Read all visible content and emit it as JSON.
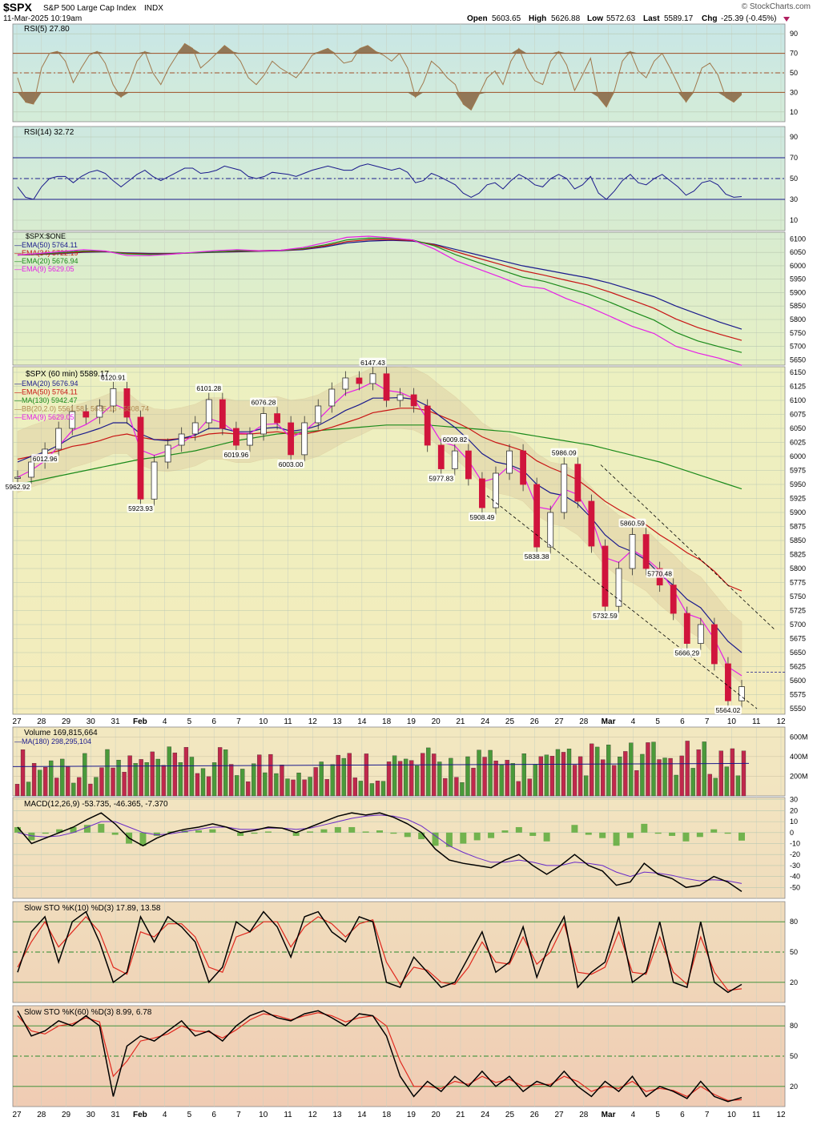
{
  "header": {
    "symbol": "$SPX",
    "name": "S&P 500 Large Cap Index",
    "exchange": "INDX",
    "date": "11-Mar-2025 10:19am",
    "watermark": "© StockCharts.com",
    "open_label": "Open",
    "open": "5603.65",
    "high_label": "High",
    "high": "5626.88",
    "low_label": "Low",
    "low": "5572.63",
    "last_label": "Last",
    "last": "5589.17",
    "chg_label": "Chg",
    "chg": "-25.39 (-0.45%)",
    "chg_arrow": "down-triangle-icon"
  },
  "colors": {
    "rsi_line": "#a0784c",
    "rsi_fill": "#8b6a48",
    "rsi14_line": "#1a1a8c",
    "ema50": "#1a1a8c",
    "ema34": "#c81414",
    "ema20": "#1a8a1a",
    "ema9": "#e61ee6",
    "up": "#2f8c2f",
    "down": "#d0143c",
    "volume_up": "#4a9a3a",
    "volume_down": "#c0284c",
    "macd": "#000000",
    "signal": "#6a2ac8",
    "hist": "#5caa3a",
    "sto_k": "#000000",
    "sto_d": "#e0281e"
  },
  "x_axis": {
    "labels": [
      "27",
      "28",
      "29",
      "30",
      "31",
      "Feb",
      "4",
      "5",
      "6",
      "7",
      "10",
      "11",
      "12",
      "13",
      "14",
      "18",
      "19",
      "20",
      "21",
      "24",
      "25",
      "26",
      "27",
      "28",
      "Mar",
      "4",
      "5",
      "6",
      "7",
      "10",
      "11",
      "12"
    ],
    "bold": [
      "Feb",
      "Mar"
    ]
  },
  "chart_data": [
    {
      "type": "line",
      "title": "RSI(5) 27.80",
      "yticks": [
        10,
        30,
        50,
        70,
        90
      ],
      "ylim": [
        0,
        100
      ],
      "levels": [
        30,
        50,
        70
      ],
      "values": [
        45,
        20,
        18,
        55,
        70,
        72,
        62,
        40,
        55,
        68,
        72,
        60,
        38,
        25,
        40,
        62,
        72,
        50,
        38,
        55,
        68,
        80,
        75,
        55,
        62,
        70,
        78,
        72,
        62,
        45,
        38,
        48,
        62,
        55,
        50,
        45,
        55,
        68,
        72,
        75,
        68,
        60,
        62,
        75,
        78,
        72,
        68,
        62,
        70,
        55,
        25,
        40,
        62,
        55,
        45,
        38,
        18,
        12,
        28,
        45,
        52,
        38,
        62,
        75,
        55,
        42,
        38,
        62,
        72,
        58,
        32,
        48,
        65,
        25,
        15,
        32,
        62,
        72,
        52,
        45,
        62,
        70,
        55,
        38,
        20,
        32,
        55,
        60,
        48,
        25,
        20,
        27.8
      ]
    },
    {
      "type": "line",
      "title": "RSI(14) 32.72",
      "yticks": [
        10,
        30,
        50,
        70,
        90
      ],
      "ylim": [
        0,
        100
      ],
      "levels": [
        30,
        50,
        70
      ],
      "values": [
        42,
        32,
        30,
        42,
        50,
        52,
        52,
        46,
        52,
        56,
        58,
        55,
        48,
        42,
        48,
        54,
        58,
        52,
        48,
        52,
        56,
        60,
        60,
        55,
        56,
        58,
        62,
        60,
        58,
        52,
        50,
        52,
        56,
        55,
        54,
        52,
        55,
        58,
        60,
        62,
        60,
        58,
        58,
        62,
        64,
        62,
        60,
        58,
        60,
        56,
        46,
        48,
        55,
        52,
        48,
        44,
        36,
        32,
        36,
        44,
        46,
        40,
        48,
        54,
        50,
        44,
        42,
        50,
        54,
        50,
        40,
        44,
        52,
        36,
        30,
        38,
        48,
        54,
        46,
        44,
        50,
        54,
        48,
        42,
        34,
        38,
        46,
        48,
        44,
        35,
        32,
        32.72
      ]
    },
    {
      "type": "line",
      "title": "$SPX:$ONE",
      "yticks": [
        5650,
        5700,
        5750,
        5800,
        5850,
        5900,
        5950,
        6000,
        6050,
        6100
      ],
      "ylim": [
        5630,
        6125
      ],
      "series": [
        {
          "name": "EMA(50) 5764.11",
          "values": [
            6040,
            6042,
            6045,
            6050,
            6052,
            6048,
            6046,
            6046,
            6048,
            6050,
            6052,
            6054,
            6056,
            6060,
            6070,
            6085,
            6092,
            6095,
            6092,
            6080,
            6060,
            6040,
            6020,
            6000,
            5985,
            5970,
            5955,
            5935,
            5910,
            5885,
            5850,
            5820,
            5790,
            5764
          ]
        },
        {
          "name": "EMA(34) 5722.19",
          "values": [
            6040,
            6043,
            6047,
            6052,
            6053,
            6046,
            6044,
            6045,
            6048,
            6051,
            6054,
            6055,
            6057,
            6062,
            6074,
            6090,
            6097,
            6098,
            6094,
            6078,
            6052,
            6028,
            6005,
            5982,
            5965,
            5946,
            5928,
            5902,
            5872,
            5842,
            5802,
            5770,
            5745,
            5722
          ]
        },
        {
          "name": "EMA(20) 5676.94",
          "values": [
            6040,
            6044,
            6049,
            6055,
            6054,
            6044,
            6042,
            6044,
            6048,
            6052,
            6056,
            6056,
            6058,
            6064,
            6078,
            6096,
            6103,
            6102,
            6096,
            6074,
            6040,
            6012,
            5985,
            5958,
            5942,
            5918,
            5895,
            5864,
            5830,
            5798,
            5752,
            5720,
            5698,
            5677
          ]
        },
        {
          "name": "EMA(9) 5629.05",
          "values": [
            6040,
            6046,
            6053,
            6060,
            6055,
            6038,
            6038,
            6043,
            6050,
            6056,
            6060,
            6056,
            6058,
            6068,
            6086,
            6106,
            6110,
            6104,
            6096,
            6062,
            6018,
            5988,
            5958,
            5925,
            5915,
            5878,
            5848,
            5812,
            5775,
            5748,
            5700,
            5675,
            5655,
            5629
          ]
        }
      ]
    },
    {
      "type": "candlestick",
      "title": "$SPX (60 min) 5589.17",
      "yticks": [
        5550,
        5575,
        5600,
        5625,
        5650,
        5675,
        5700,
        5725,
        5750,
        5775,
        5800,
        5825,
        5850,
        5875,
        5900,
        5925,
        5950,
        5975,
        6000,
        6025,
        6050,
        6075,
        6100,
        6125,
        6150
      ],
      "ylim": [
        5540,
        6160
      ],
      "close": [
        5962.92,
        5990,
        6012.96,
        6050,
        6080,
        6070,
        6090,
        6120.91,
        6070,
        5923.93,
        5990,
        6020,
        6040,
        6060,
        6101.28,
        6050,
        6019.96,
        6040,
        6076.28,
        6060,
        6003.0,
        6060,
        6090,
        6120,
        6140,
        6130,
        6147.43,
        6100,
        6110,
        6090,
        6020,
        5977.83,
        6009.82,
        5960,
        5908.49,
        5970,
        6009.82,
        5950,
        5838.38,
        5900,
        5986.09,
        5920,
        5840,
        5732.59,
        5800,
        5860.59,
        5800,
        5770.48,
        5720,
        5666.29,
        5700,
        5630,
        5564.02,
        5589.17
      ],
      "ema20": [
        5990,
        6000,
        6008,
        6020,
        6035,
        6042,
        6050,
        6060,
        6060,
        6040,
        6030,
        6028,
        6032,
        6038,
        6050,
        6050,
        6044,
        6044,
        6050,
        6052,
        6045,
        6048,
        6055,
        6068,
        6082,
        6092,
        6104,
        6104,
        6105,
        6102,
        6090,
        6070,
        6052,
        6030,
        6005,
        5990,
        5985,
        5975,
        5950,
        5935,
        5930,
        5915,
        5890,
        5860,
        5840,
        5830,
        5815,
        5790,
        5770,
        5745,
        5730,
        5700,
        5670,
        5650
      ],
      "ema50": [
        5995,
        6000,
        6004,
        6010,
        6018,
        6022,
        6028,
        6036,
        6040,
        6034,
        6030,
        6030,
        6032,
        6034,
        6040,
        6042,
        6040,
        6040,
        6042,
        6044,
        6040,
        6040,
        6045,
        6052,
        6060,
        6068,
        6078,
        6082,
        6086,
        6086,
        6082,
        6072,
        6062,
        6050,
        6035,
        6025,
        6018,
        6010,
        5992,
        5980,
        5970,
        5958,
        5940,
        5920,
        5905,
        5892,
        5878,
        5860,
        5845,
        5828,
        5815,
        5795,
        5770,
        5760
      ],
      "ma130": [
        5950,
        5955,
        5960,
        5965,
        5970,
        5975,
        5980,
        5985,
        5990,
        5995,
        5998,
        6002,
        6006,
        6010,
        6016,
        6022,
        6028,
        6032,
        6036,
        6040,
        6042,
        6044,
        6046,
        6048,
        6050,
        6052,
        6054,
        6056,
        6056,
        6056,
        6056,
        6054,
        6052,
        6050,
        6048,
        6046,
        6044,
        6040,
        6036,
        6032,
        6028,
        6024,
        6020,
        6014,
        6008,
        6002,
        5996,
        5990,
        5982,
        5974,
        5966,
        5958,
        5950,
        5942
      ],
      "annotations": [
        "5962.92",
        "6012.96",
        "6120.91",
        "5923.93",
        "6101.28",
        "6019.96",
        "6076.28",
        "6003.00",
        "6147.43",
        "5977.83",
        "6009.82",
        "5908.49",
        "5838.38",
        "5986.09",
        "5732.59",
        "5860.59",
        "5770.48",
        "5666.29",
        "5564.02"
      ],
      "legend": [
        "EMA(20) 5676.94",
        "EMA(50) 5764.11",
        "MA(130) 5942.47",
        "BB(20,2.0) 5561.58 - 5685.16 - 5808.74",
        "EMA(9) 5629.05"
      ]
    },
    {
      "type": "bar",
      "title": "Volume 169,815,664",
      "ma_label": "MA(180) 298,295,104",
      "yticks": [
        "200M",
        "400M",
        "600M"
      ],
      "ma_value": 298
    },
    {
      "type": "line",
      "title": "MACD(12,26,9) -53.735, -46.365, -7.370",
      "yticks": [
        -50,
        -40,
        -30,
        -20,
        -10,
        0,
        10,
        20,
        30
      ],
      "ylim": [
        -60,
        32
      ],
      "macd": [
        5,
        -10,
        -5,
        0,
        5,
        12,
        18,
        8,
        -5,
        -12,
        -5,
        0,
        3,
        5,
        8,
        5,
        0,
        2,
        5,
        4,
        0,
        5,
        10,
        15,
        18,
        16,
        18,
        14,
        8,
        0,
        -15,
        -25,
        -28,
        -30,
        -32,
        -25,
        -20,
        -30,
        -38,
        -30,
        -20,
        -30,
        -35,
        -48,
        -45,
        -28,
        -38,
        -42,
        -50,
        -48,
        -40,
        -45,
        -53.7
      ],
      "signal": [
        0,
        -3,
        -4,
        -3,
        0,
        5,
        10,
        10,
        5,
        0,
        -2,
        -1,
        1,
        3,
        5,
        5,
        3,
        3,
        4,
        4,
        3,
        4,
        7,
        10,
        13,
        15,
        16,
        15,
        12,
        6,
        -3,
        -12,
        -18,
        -23,
        -27,
        -27,
        -25,
        -27,
        -30,
        -30,
        -27,
        -28,
        -30,
        -36,
        -40,
        -36,
        -37,
        -39,
        -42,
        -44,
        -43,
        -44,
        -46.4
      ]
    },
    {
      "type": "line",
      "title": "Slow STO %K(10) %D(3) 17.89, 13.58",
      "yticks": [
        20,
        50,
        80
      ],
      "ylim": [
        0,
        100
      ],
      "k": [
        30,
        70,
        85,
        40,
        80,
        90,
        60,
        20,
        30,
        85,
        60,
        85,
        75,
        60,
        20,
        35,
        80,
        70,
        90,
        75,
        45,
        85,
        90,
        70,
        60,
        85,
        80,
        20,
        15,
        45,
        30,
        15,
        20,
        45,
        70,
        30,
        40,
        75,
        25,
        60,
        85,
        15,
        30,
        40,
        85,
        20,
        30,
        80,
        20,
        15,
        80,
        20,
        10,
        17.9
      ],
      "d": [
        35,
        60,
        80,
        55,
        70,
        85,
        70,
        35,
        28,
        70,
        65,
        78,
        78,
        65,
        35,
        30,
        65,
        70,
        80,
        80,
        55,
        75,
        85,
        78,
        65,
        78,
        82,
        40,
        18,
        35,
        32,
        20,
        18,
        35,
        60,
        40,
        38,
        65,
        38,
        50,
        78,
        30,
        28,
        35,
        70,
        30,
        28,
        65,
        30,
        18,
        65,
        30,
        12,
        13.6
      ]
    },
    {
      "type": "line",
      "title": "Slow STO %K(60) %D(3) 8.99, 6.78",
      "yticks": [
        20,
        50,
        80
      ],
      "ylim": [
        0,
        100
      ],
      "k": [
        95,
        70,
        75,
        85,
        80,
        90,
        80,
        10,
        60,
        70,
        65,
        75,
        85,
        70,
        75,
        65,
        80,
        90,
        95,
        88,
        85,
        92,
        95,
        88,
        80,
        92,
        90,
        70,
        30,
        10,
        25,
        15,
        30,
        20,
        35,
        20,
        30,
        15,
        25,
        20,
        35,
        20,
        10,
        25,
        15,
        30,
        10,
        20,
        15,
        8,
        25,
        10,
        5,
        9.0
      ],
      "d": [
        90,
        75,
        72,
        80,
        82,
        88,
        84,
        30,
        45,
        65,
        68,
        72,
        80,
        75,
        74,
        68,
        76,
        86,
        92,
        90,
        86,
        90,
        93,
        90,
        84,
        88,
        90,
        80,
        45,
        20,
        20,
        18,
        25,
        22,
        30,
        24,
        27,
        20,
        22,
        22,
        30,
        25,
        15,
        20,
        18,
        25,
        15,
        18,
        16,
        10,
        20,
        12,
        6,
        6.8
      ]
    }
  ]
}
